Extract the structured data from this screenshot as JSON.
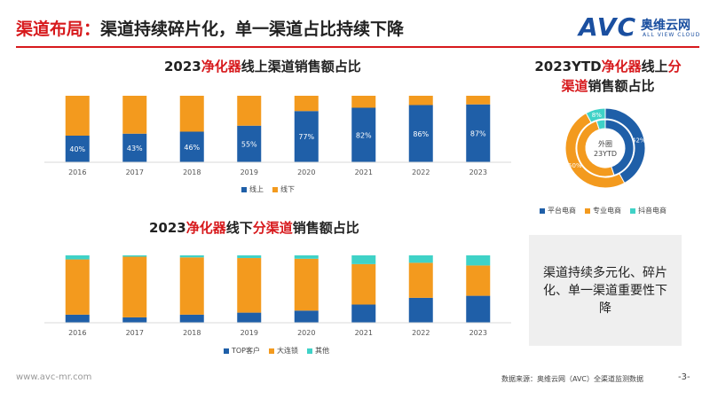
{
  "header": {
    "title_red": "渠道布局：",
    "title_rest": "渠道持续碎片化，单一渠道占比持续下降",
    "logo_avc": "AVC",
    "logo_cn": "奥维云网",
    "logo_en": "ALL VIEW CLOUD"
  },
  "colors": {
    "blue": "#1f5fa8",
    "orange": "#f39a1e",
    "teal": "#3fd2c7",
    "red": "#d7191c"
  },
  "chart_online": {
    "title_pre": "2023",
    "title_red": "净化器",
    "title_post": "线上渠道销售额占比",
    "legend": [
      "线上",
      "线下"
    ]
  },
  "chart_offline": {
    "title_pre": "2023",
    "title_red": "净化器",
    "title_mid": "线下",
    "title_red2": "分渠道",
    "title_post": "销售额占比",
    "legend": [
      "TOP客户",
      "大连锁",
      "其他"
    ]
  },
  "chart_pie": {
    "title_line1_pre": "2023YTD",
    "title_line1_red": "净化器",
    "title_line1_mid": "线上",
    "title_line1_red2": "分",
    "title_line2_red": "渠道",
    "title_line2_post": "销售额占比",
    "center_line1": "外圈",
    "center_line2": "23YTD",
    "legend": [
      "平台电商",
      "专业电商",
      "抖音电商"
    ]
  },
  "chart_data": [
    {
      "type": "bar",
      "stacked": true,
      "title": "2023净化器线上渠道销售额占比",
      "categories": [
        "2016",
        "2017",
        "2018",
        "2019",
        "2020",
        "2021",
        "2022",
        "2023"
      ],
      "series": [
        {
          "name": "线上",
          "values": [
            40,
            43,
            46,
            55,
            77,
            82,
            86,
            87
          ],
          "labels": [
            "40%",
            "43%",
            "46%",
            "55%",
            "77%",
            "82%",
            "86%",
            "87%"
          ]
        },
        {
          "name": "线下",
          "values": [
            60,
            57,
            54,
            45,
            23,
            18,
            14,
            13
          ]
        }
      ],
      "ylim": [
        0,
        100
      ]
    },
    {
      "type": "bar",
      "stacked": true,
      "title": "2023净化器线下分渠道销售额占比",
      "categories": [
        "2016",
        "2017",
        "2018",
        "2019",
        "2020",
        "2021",
        "2022",
        "2023"
      ],
      "series": [
        {
          "name": "TOP客户",
          "values": [
            12,
            8,
            12,
            15,
            18,
            27,
            37,
            40
          ]
        },
        {
          "name": "大连锁",
          "values": [
            82,
            90,
            85,
            81,
            77,
            60,
            52,
            45
          ]
        },
        {
          "name": "其他",
          "values": [
            6,
            2,
            3,
            4,
            5,
            13,
            11,
            15
          ]
        }
      ],
      "ylim": [
        0,
        100
      ]
    },
    {
      "type": "pie",
      "title": "2023YTD净化器线上分渠道销售额占比",
      "rings": [
        {
          "name": "外圈 23YTD",
          "labels": [
            "平台电商",
            "专业电商",
            "抖音电商"
          ],
          "values": [
            42,
            50,
            8
          ],
          "value_labels": [
            "42%",
            "50%",
            "8%"
          ]
        },
        {
          "name": "内圈",
          "labels": [
            "平台电商",
            "专业电商",
            "抖音电商"
          ],
          "values": [
            45,
            50,
            5
          ]
        }
      ]
    }
  ],
  "note": "渠道持续多元化、碎片化、单一渠道重要性下降",
  "footer": {
    "url": "www.avc-mr.com",
    "source": "数据来源：奥维云网（AVC）全渠道监测数据",
    "page": "-3-"
  }
}
